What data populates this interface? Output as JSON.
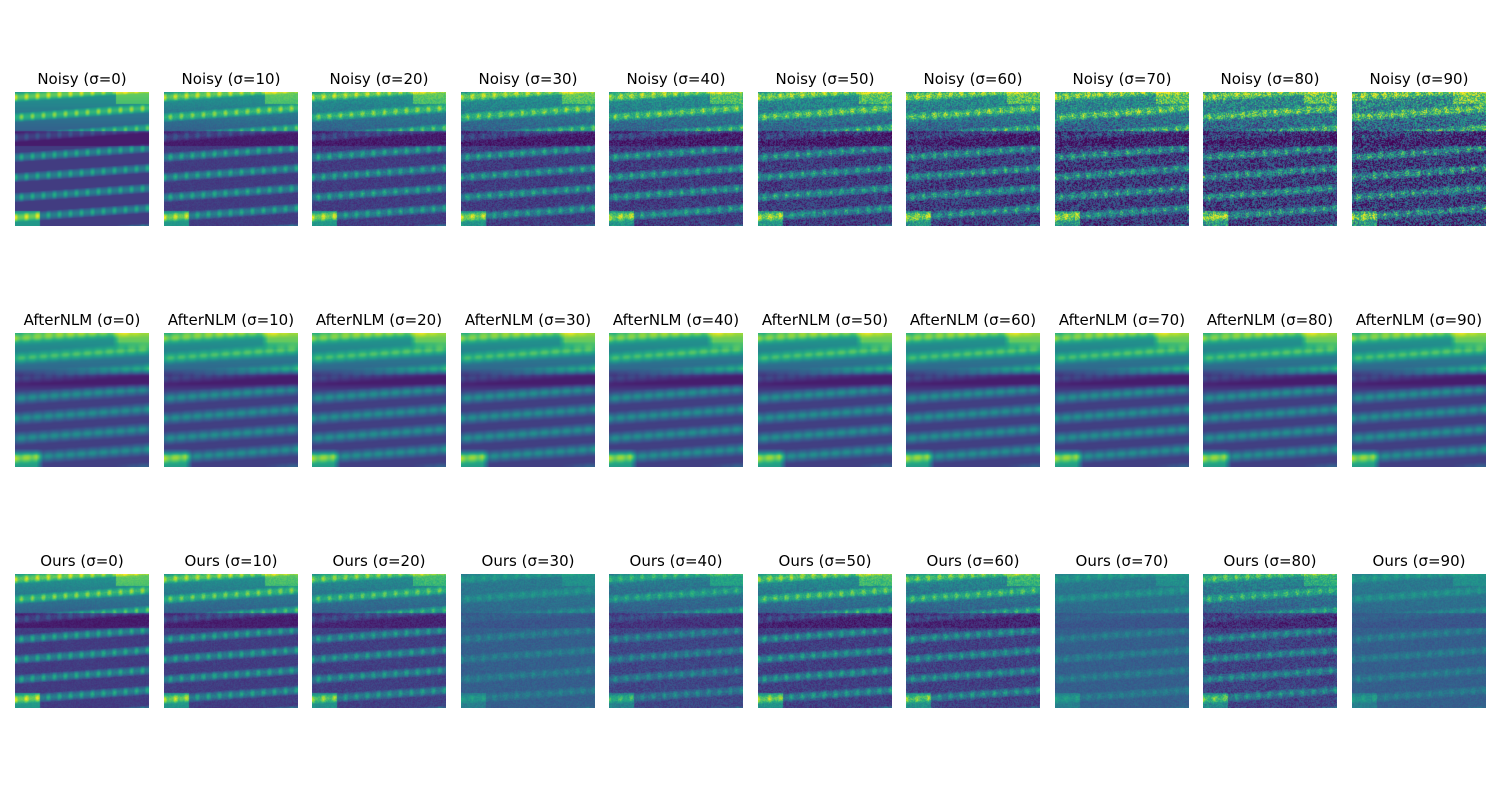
{
  "figure": {
    "rows": [
      {
        "row_id": "noisy",
        "titles": [
          "Noisy (σ=0)",
          "Noisy (σ=10)",
          "Noisy (σ=20)",
          "Noisy (σ=30)",
          "Noisy (σ=40)",
          "Noisy (σ=50)",
          "Noisy (σ=60)",
          "Noisy (σ=70)",
          "Noisy (σ=80)",
          "Noisy (σ=90)"
        ]
      },
      {
        "row_id": "afternlm",
        "titles": [
          "AfterNLM (σ=0)",
          "AfterNLM (σ=10)",
          "AfterNLM (σ=20)",
          "AfterNLM (σ=30)",
          "AfterNLM (σ=40)",
          "AfterNLM (σ=50)",
          "AfterNLM (σ=60)",
          "AfterNLM (σ=70)",
          "AfterNLM (σ=80)",
          "AfterNLM (σ=90)"
        ]
      },
      {
        "row_id": "ours",
        "titles": [
          "Ours (σ=0)",
          "Ours (σ=10)",
          "Ours (σ=20)",
          "Ours (σ=30)",
          "Ours (σ=40)",
          "Ours (σ=50)",
          "Ours (σ=60)",
          "Ours (σ=70)",
          "Ours (σ=80)",
          "Ours (σ=90)"
        ]
      }
    ],
    "colormap": "viridis",
    "image_subject": "corn-kernels"
  }
}
